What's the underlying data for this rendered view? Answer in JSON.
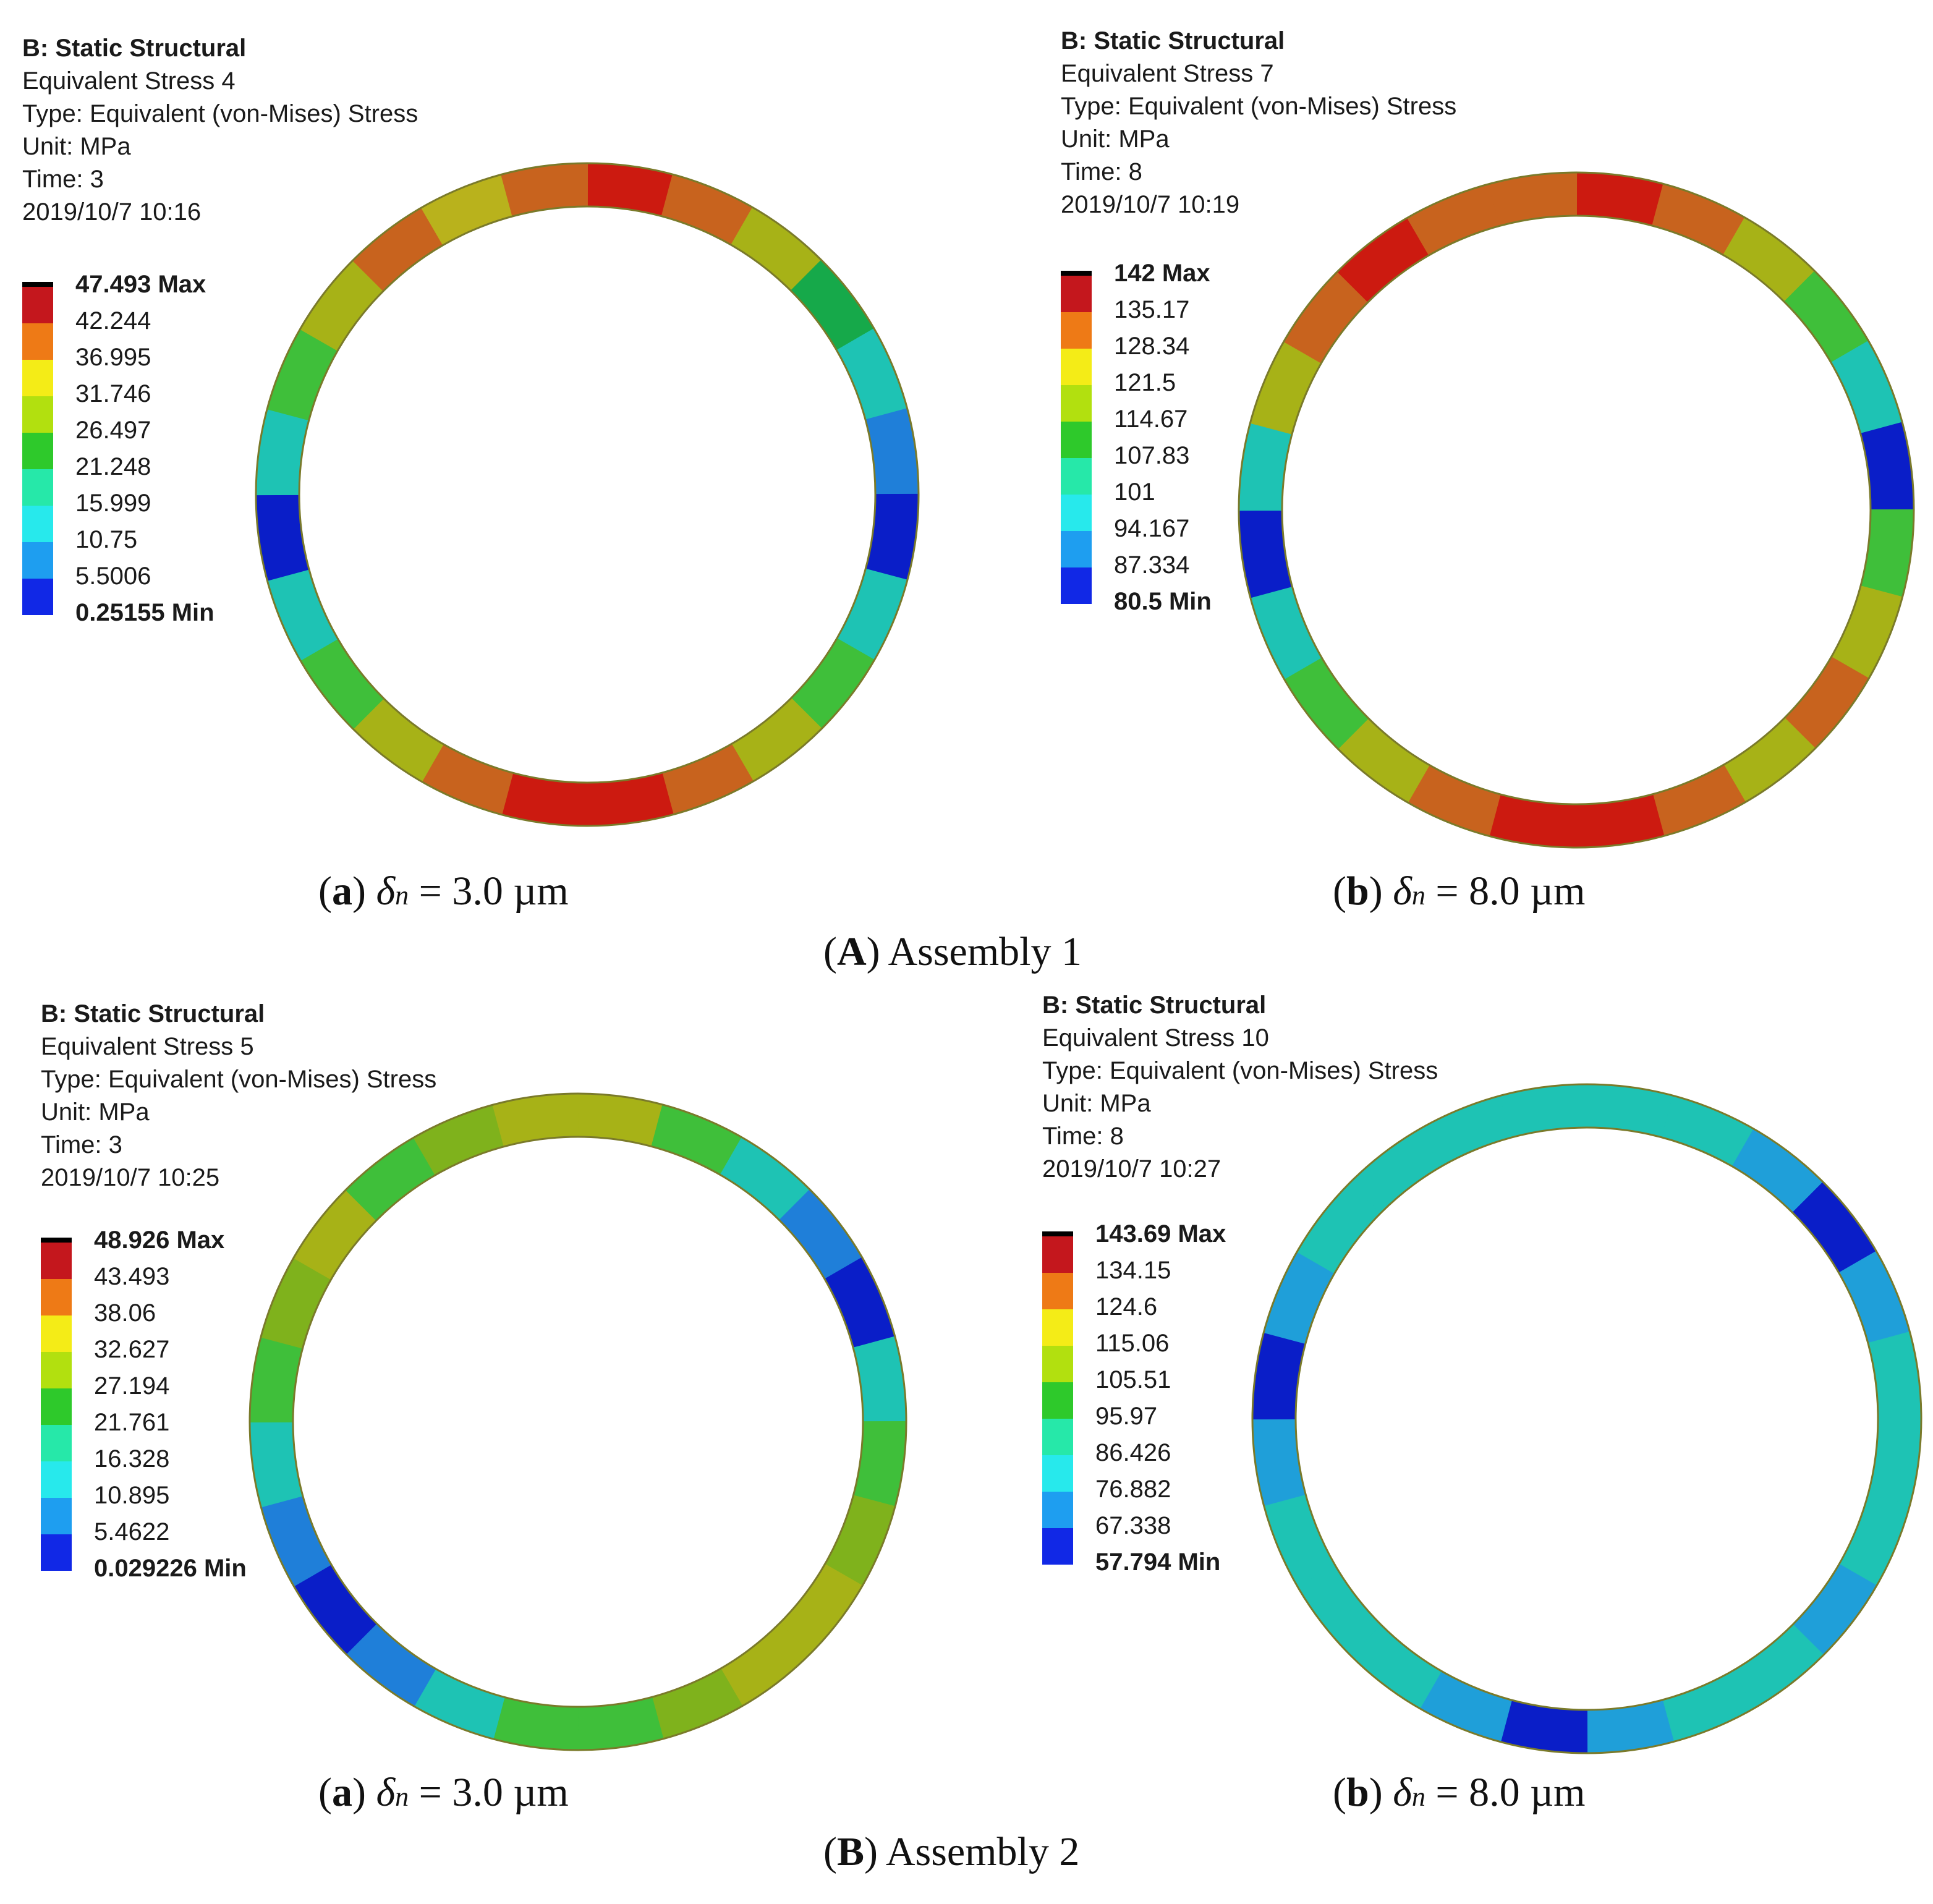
{
  "panels": [
    {
      "id": "A-a",
      "header": {
        "analysis": "B: Static Structural",
        "result": "Equivalent Stress 4",
        "type": "Type: Equivalent (von-Mises) Stress",
        "unit": "Unit: MPa",
        "time": "Time: 3",
        "date": "2019/10/7 10:16"
      },
      "legend": [
        "47.493 Max",
        "42.244",
        "36.995",
        "31.746",
        "26.497",
        "21.248",
        "15.999",
        "10.75",
        "5.5006",
        "0.25155 Min"
      ],
      "ring_colors": [
        "#cc1a10",
        "#c8631e",
        "#a7b217",
        "#16a94a",
        "#1ec3b4",
        "#1f7fd9",
        "#0a1ec8",
        "#1ec3b4",
        "#3fbf3a",
        "#a7b217",
        "#c8631e",
        "#cc1a10",
        "#cc1a10",
        "#c8631e",
        "#a7b217",
        "#3fbf3a",
        "#1ec3b4",
        "#0a1ec8",
        "#1ec3b4",
        "#3fbf3a",
        "#a7b217",
        "#c8631e",
        "#b9b21c",
        "#c8631e"
      ],
      "caption": {
        "letter": "a",
        "delta": "δ",
        "sub": "n",
        "value": " = 3.0 µm"
      }
    },
    {
      "id": "A-b",
      "header": {
        "analysis": "B: Static Structural",
        "result": "Equivalent Stress 7",
        "type": "Type: Equivalent (von-Mises) Stress",
        "unit": "Unit: MPa",
        "time": "Time: 8",
        "date": "2019/10/7 10:19"
      },
      "legend": [
        "142 Max",
        "135.17",
        "128.34",
        "121.5",
        "114.67",
        "107.83",
        "101",
        "94.167",
        "87.334",
        "80.5 Min"
      ],
      "ring_colors": [
        "#cc1a10",
        "#c8631e",
        "#a7b217",
        "#3fbf3a",
        "#1ec3b4",
        "#0a1ec8",
        "#3fbf3a",
        "#a7b217",
        "#c8631e",
        "#a7b217",
        "#c8631e",
        "#cc1a10",
        "#cc1a10",
        "#c8631e",
        "#a7b217",
        "#3fbf3a",
        "#1ec3b4",
        "#0a1ec8",
        "#1ec3b4",
        "#a7b217",
        "#c8631e",
        "#cc1a10",
        "#c8631e",
        "#c8631e"
      ],
      "caption": {
        "letter": "b",
        "delta": "δ",
        "sub": "n",
        "value": " = 8.0 µm"
      }
    },
    {
      "id": "B-a",
      "header": {
        "analysis": "B: Static Structural",
        "result": "Equivalent Stress 5",
        "type": "Type: Equivalent (von-Mises) Stress",
        "unit": "Unit: MPa",
        "time": "Time: 3",
        "date": "2019/10/7 10:25"
      },
      "legend": [
        "48.926 Max",
        "43.493",
        "38.06",
        "32.627",
        "27.194",
        "21.761",
        "16.328",
        "10.895",
        "5.4622",
        "0.029226 Min"
      ],
      "ring_colors": [
        "#a7b217",
        "#3fbf3a",
        "#1ec3b4",
        "#1f7fd9",
        "#0a1ec8",
        "#1ec3b4",
        "#3fbf3a",
        "#7fb21c",
        "#a7b217",
        "#a7b217",
        "#7fb21c",
        "#3fbf3a",
        "#3fbf3a",
        "#1ec3b4",
        "#1f7fd9",
        "#0a1ec8",
        "#1f7fd9",
        "#1ec3b4",
        "#3fbf3a",
        "#7fb21c",
        "#a7b217",
        "#3fbf3a",
        "#7fb21c",
        "#a7b217"
      ],
      "caption": {
        "letter": "a",
        "delta": "δ",
        "sub": "n",
        "value": " = 3.0 µm"
      }
    },
    {
      "id": "B-b",
      "header": {
        "analysis": "B: Static Structural",
        "result": "Equivalent Stress 10",
        "type": "Type: Equivalent (von-Mises) Stress",
        "unit": "Unit: MPa",
        "time": "Time: 8",
        "date": "2019/10/7 10:27"
      },
      "legend": [
        "143.69 Max",
        "134.15",
        "124.6",
        "115.06",
        "105.51",
        "95.97",
        "86.426",
        "76.882",
        "67.338",
        "57.794 Min"
      ],
      "ring_colors": [
        "#1ec3b4",
        "#1ec3b4",
        "#1f9fd9",
        "#0a1ec8",
        "#1f9fd9",
        "#1ec3b4",
        "#1ec3b4",
        "#1ec3b4",
        "#1f9fd9",
        "#1ec3b4",
        "#1ec3b4",
        "#1f9fd9",
        "#0a1ec8",
        "#1f9fd9",
        "#1ec3b4",
        "#1ec3b4",
        "#1ec3b4",
        "#1f9fd9",
        "#0a1ec8",
        "#1f9fd9",
        "#1ec3b4",
        "#1ec3b4",
        "#1ec3b4",
        "#1ec3b4"
      ],
      "caption": {
        "letter": "b",
        "delta": "δ",
        "sub": "n",
        "value": " = 8.0 µm"
      }
    }
  ],
  "legend_colors": [
    "#c4171d",
    "#ee7a16",
    "#f4ec17",
    "#b2e00f",
    "#2ec92b",
    "#26e8a9",
    "#27e9ec",
    "#1e9ef0",
    "#1128e6"
  ],
  "legend_cap_color": "#000000",
  "group_captions": [
    {
      "letter": "A",
      "text": " Assembly 1"
    },
    {
      "letter": "B",
      "text": " Assembly 2"
    }
  ]
}
